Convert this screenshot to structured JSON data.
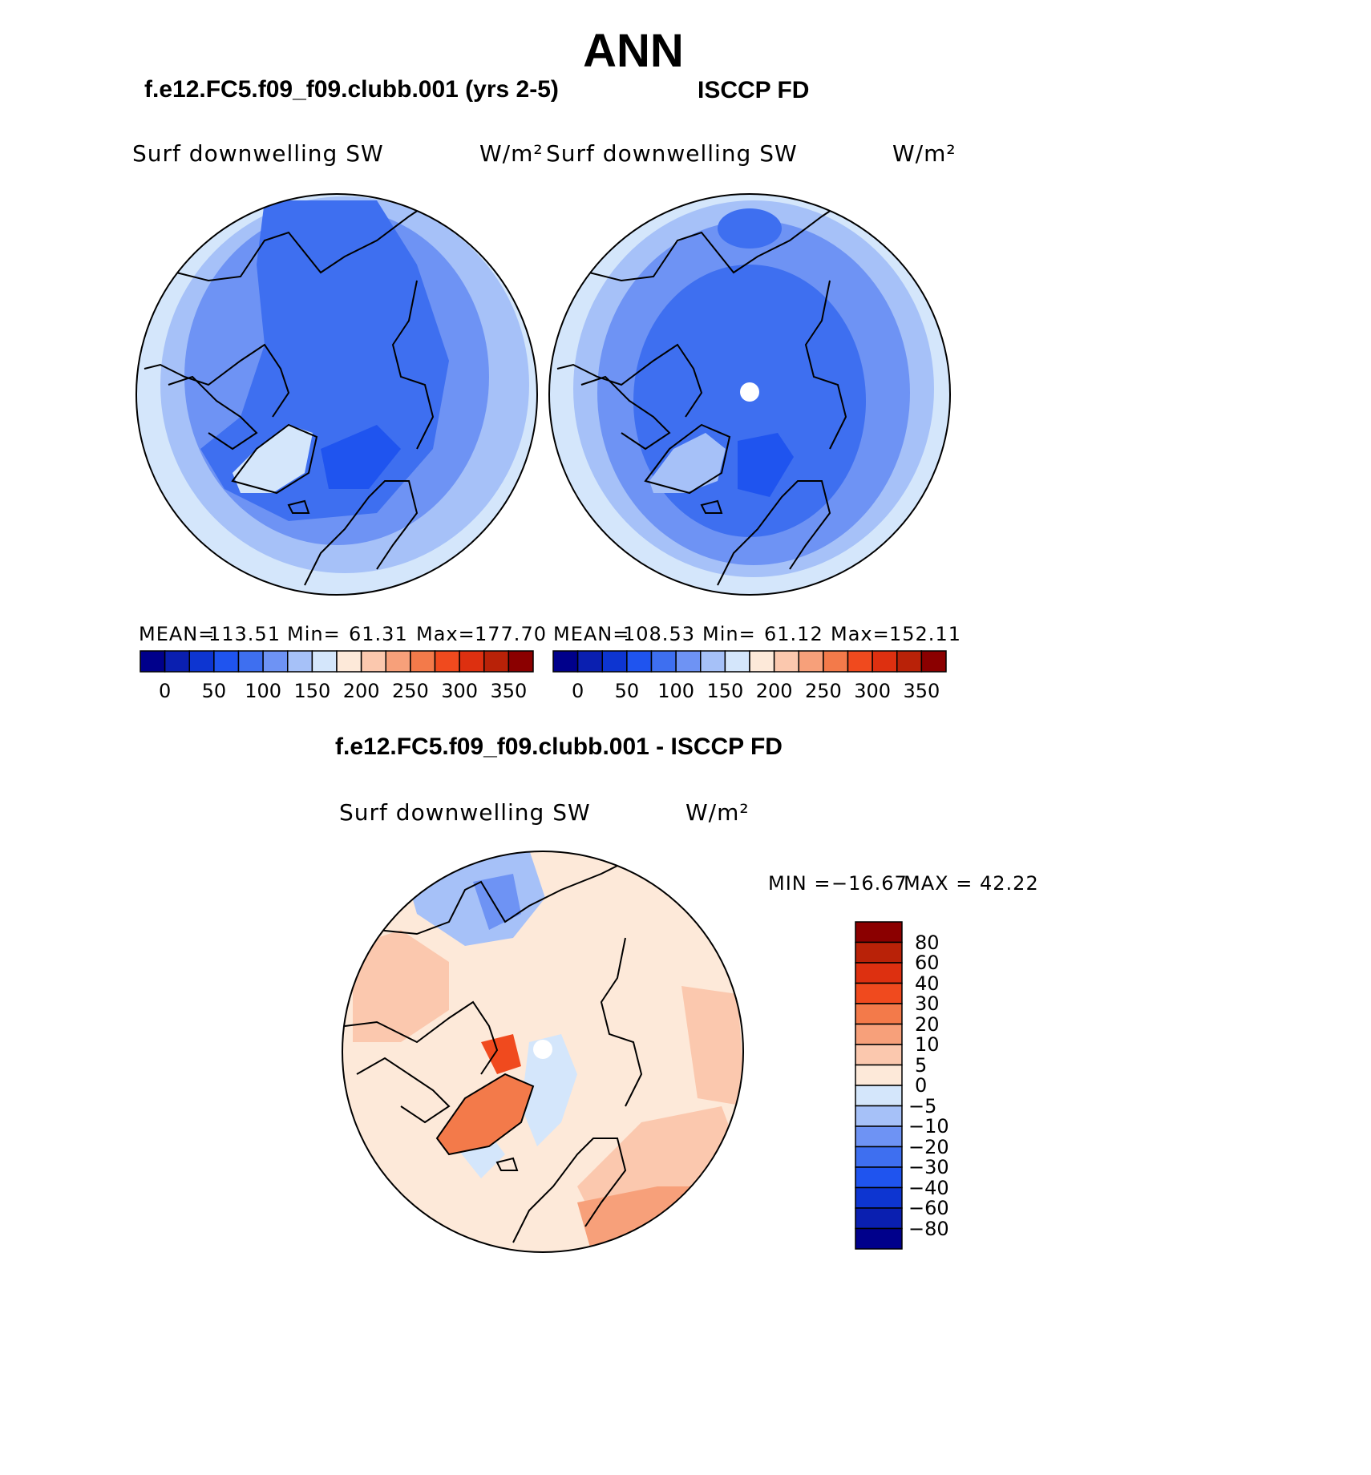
{
  "page": {
    "title": "ANN"
  },
  "panels": [
    {
      "header": "f.e12.FC5.f09_f09.clubb.001 (yrs 2-5)",
      "variable": "Surf downwelling SW",
      "units": "W/m²",
      "mean_label": "MEAN=",
      "mean": "113.51",
      "min_label": "Min=",
      "min": "61.31",
      "max_label": "Max=",
      "max": "177.70"
    },
    {
      "header": "ISCCP FD",
      "variable": "Surf downwelling SW",
      "units": "W/m²",
      "mean_label": "MEAN=",
      "mean": "108.53",
      "min_label": "Min=",
      "min": "61.12",
      "max_label": "Max=",
      "max": "152.11"
    }
  ],
  "abs_colorbar": {
    "colors": [
      "#00008b",
      "#0a1fb0",
      "#0d35d1",
      "#1f54ef",
      "#3e6ff0",
      "#6e93f4",
      "#a6c1f8",
      "#d4e6fb",
      "#fde9d9",
      "#fbc8ae",
      "#f7a07a",
      "#f37a4a",
      "#f04a1e",
      "#dd3010",
      "#b92208",
      "#8b0000"
    ],
    "labels": [
      "0",
      "50",
      "100",
      "150",
      "200",
      "250",
      "300",
      "350"
    ]
  },
  "difference": {
    "header": "f.e12.FC5.f09_f09.clubb.001 - ISCCP FD",
    "variable": "Surf downwelling SW",
    "units": "W/m²",
    "min_label": "MIN =",
    "min": "−16.67",
    "max_label": "MAX =",
    "max": "42.22"
  },
  "diff_colorbar": {
    "colors": [
      "#8b0000",
      "#b92208",
      "#dd3010",
      "#f04a1e",
      "#f37a4a",
      "#f7a07a",
      "#fbc8ae",
      "#fde9d9",
      "#d4e6fb",
      "#a6c1f8",
      "#6e93f4",
      "#3e6ff0",
      "#1f54ef",
      "#0d35d1",
      "#0a1fb0",
      "#00008b"
    ],
    "labels": [
      "80",
      "60",
      "40",
      "30",
      "20",
      "10",
      "5",
      "0",
      "−5",
      "−10",
      "−20",
      "−30",
      "−40",
      "−60",
      "−80"
    ]
  }
}
